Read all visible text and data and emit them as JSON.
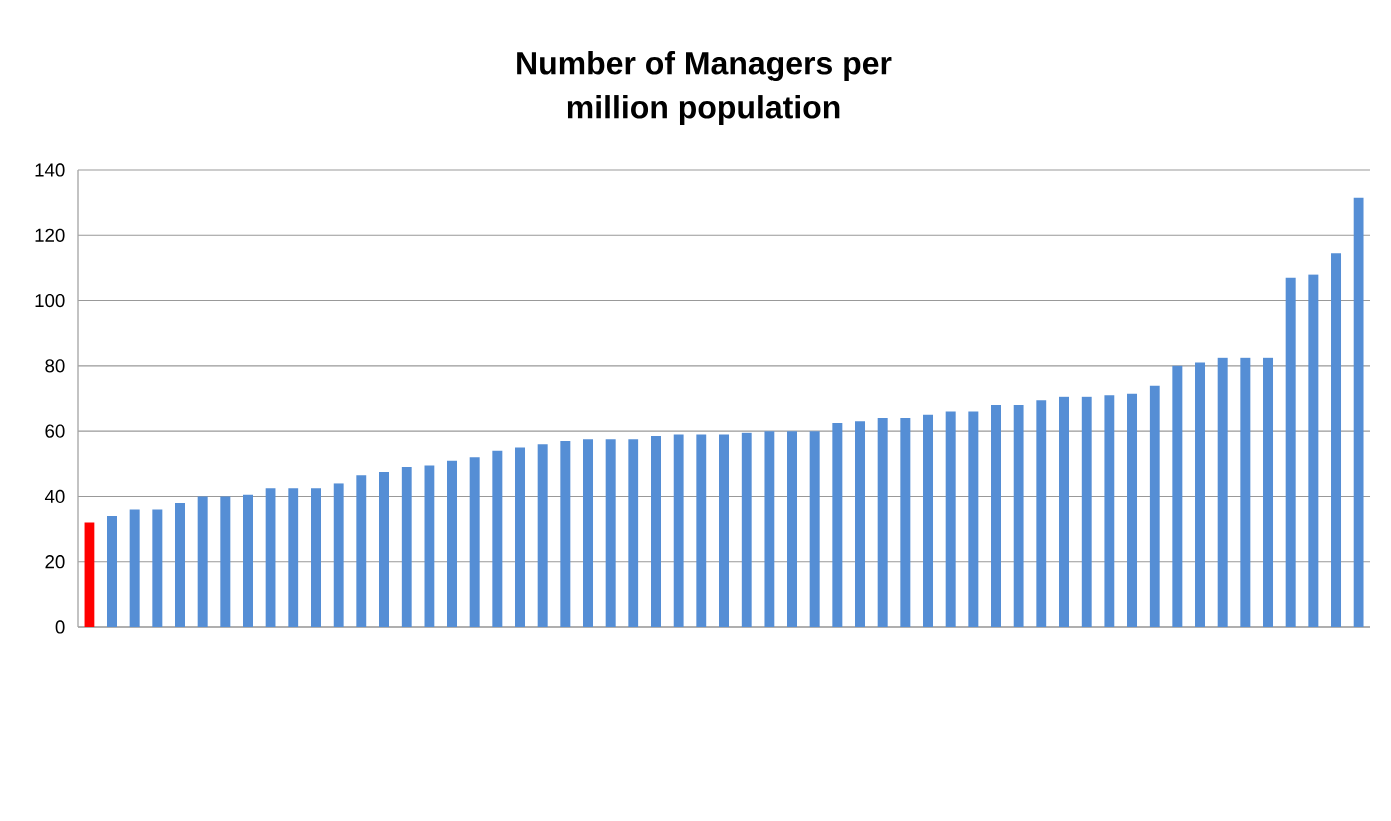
{
  "chart_data": {
    "type": "bar",
    "title": "Number of Managers per\nmillion population",
    "categories": [
      null,
      null,
      null,
      null,
      null,
      null,
      null,
      null,
      null,
      null,
      null,
      null,
      null,
      null,
      null,
      null,
      null,
      null,
      null,
      null,
      null,
      null,
      null,
      null,
      null,
      null,
      null,
      null,
      null,
      null,
      null,
      null,
      null,
      null,
      null,
      null,
      null,
      null,
      null,
      null,
      null,
      null,
      null,
      null,
      null,
      null,
      null,
      null,
      null,
      null,
      null,
      null,
      null,
      null,
      null,
      null,
      null
    ],
    "values": [
      32,
      34,
      36,
      36,
      38,
      40,
      40,
      40.5,
      42.5,
      42.5,
      42.5,
      44,
      46.5,
      47.5,
      49,
      49.5,
      51,
      52,
      54,
      55,
      56,
      57,
      57.5,
      57.5,
      57.5,
      58.5,
      59,
      59,
      59,
      59.5,
      60,
      60,
      60,
      62.5,
      63,
      64,
      64,
      65,
      66,
      66,
      68,
      68,
      69.5,
      70.5,
      70.5,
      71,
      71.5,
      74,
      80,
      81,
      82.5,
      82.5,
      82.5,
      107,
      108,
      114.5,
      131.5
    ],
    "colors": [
      "#ff0000",
      "#558ed5",
      "#558ed5",
      "#558ed5",
      "#558ed5",
      "#558ed5",
      "#558ed5",
      "#558ed5",
      "#558ed5",
      "#558ed5",
      "#558ed5",
      "#558ed5",
      "#558ed5",
      "#558ed5",
      "#558ed5",
      "#558ed5",
      "#558ed5",
      "#558ed5",
      "#558ed5",
      "#558ed5",
      "#558ed5",
      "#558ed5",
      "#558ed5",
      "#558ed5",
      "#558ed5",
      "#558ed5",
      "#558ed5",
      "#558ed5",
      "#558ed5",
      "#558ed5",
      "#558ed5",
      "#558ed5",
      "#558ed5",
      "#558ed5",
      "#558ed5",
      "#558ed5",
      "#558ed5",
      "#558ed5",
      "#558ed5",
      "#558ed5",
      "#558ed5",
      "#558ed5",
      "#558ed5",
      "#558ed5",
      "#558ed5",
      "#558ed5",
      "#558ed5",
      "#558ed5",
      "#558ed5",
      "#558ed5",
      "#558ed5",
      "#558ed5",
      "#558ed5",
      "#558ed5",
      "#558ed5",
      "#558ed5",
      "#558ed5"
    ],
    "ylim": [
      0,
      140
    ],
    "yticks": [
      0,
      20,
      40,
      60,
      80,
      100,
      120,
      140
    ],
    "grid": "y"
  }
}
